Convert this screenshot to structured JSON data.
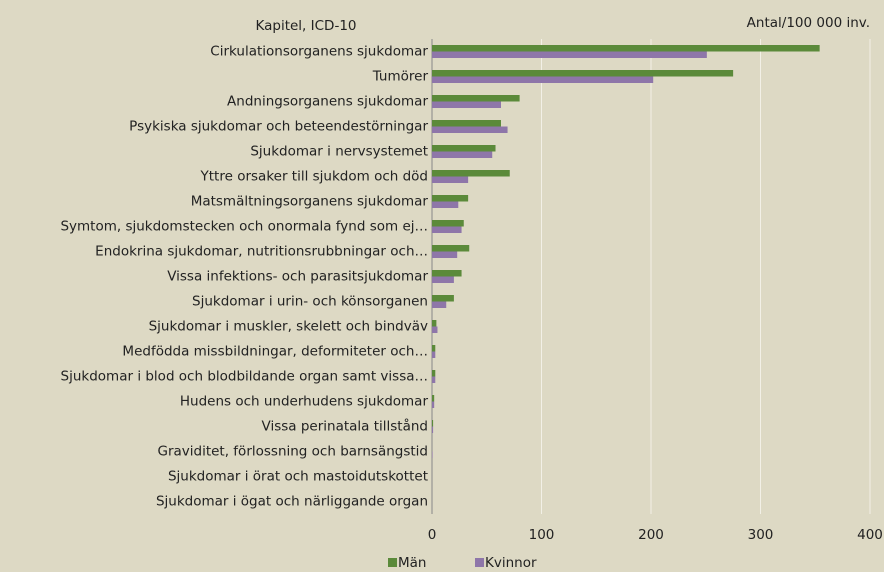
{
  "chart_data": {
    "type": "barh",
    "y_label": "Kapitel, ICD-10",
    "x_label": "Antal/100 000 inv.",
    "categories": [
      "Cirkulationsorganens sjukdomar",
      "Tumörer",
      "Andningsorganens sjukdomar",
      "Psykiska sjukdomar och beteendestörningar",
      "Sjukdomar i nervsystemet",
      "Yttre orsaker till sjukdom och död",
      "Matsmältningsorganens sjukdomar",
      "Symtom, sjukdomstecken och onormala fynd som ej…",
      "Endokrina sjukdomar, nutritionsrubbningar och…",
      "Vissa infektions- och parasitsjukdomar",
      "Sjukdomar i urin- och könsorganen",
      "Sjukdomar i muskler, skelett och bindväv",
      "Medfödda missbildningar, deformiteter och…",
      "Sjukdomar i blod och blodbildande organ samt vissa…",
      "Hudens och underhudens sjukdomar",
      "Vissa perinatala tillstånd",
      "Graviditet, förlossning och barnsängstid",
      "Sjukdomar i örat och mastoidutskottet",
      "Sjukdomar i ögat och närliggande organ"
    ],
    "series": [
      {
        "name": "Män",
        "color": "#5b8a3a",
        "values": [
          354,
          275,
          80,
          63,
          58,
          71,
          33,
          29,
          34,
          27,
          20,
          4,
          3,
          3,
          2,
          1,
          0,
          0,
          0
        ]
      },
      {
        "name": "Kvinnor",
        "color": "#8e76a9",
        "values": [
          251,
          202,
          63,
          69,
          55,
          33,
          24,
          27,
          23,
          20,
          13,
          5,
          3,
          3,
          2,
          1,
          0.5,
          0,
          0
        ]
      }
    ],
    "xlim": [
      0,
      400
    ],
    "xticks": [
      0,
      100,
      200,
      300,
      400
    ],
    "grid": true,
    "legend": "bottom"
  }
}
